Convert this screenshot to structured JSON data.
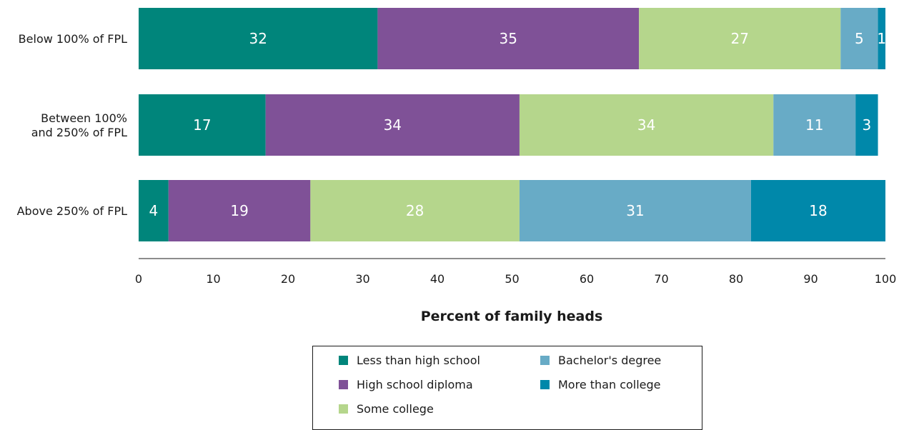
{
  "chart_data": {
    "type": "bar",
    "orientation": "horizontal",
    "stacked": true,
    "categories": [
      "Below 100% of FPL",
      "Between 100%\nand 250% of FPL",
      "Above 250% of FPL"
    ],
    "series": [
      {
        "name": "Less than high school",
        "values": [
          32,
          17,
          4
        ],
        "color": "#00857b"
      },
      {
        "name": "High school diploma",
        "values": [
          35,
          34,
          19
        ],
        "color": "#7f5197"
      },
      {
        "name": "Some college",
        "values": [
          27,
          34,
          28
        ],
        "color": "#b5d68c"
      },
      {
        "name": "Bachelor's degree",
        "values": [
          5,
          11,
          31
        ],
        "color": "#68abc6"
      },
      {
        "name": "More than college",
        "values": [
          1,
          3,
          18
        ],
        "color": "#0088aa"
      }
    ],
    "xlim": [
      0,
      100
    ],
    "xticks": [
      "0",
      "10",
      "20",
      "30",
      "40",
      "50",
      "60",
      "70",
      "80",
      "90",
      "100"
    ],
    "xlabel": "Percent of family heads",
    "ylabel": "",
    "title": "",
    "grid": false,
    "legend_position": "bottom-center"
  }
}
